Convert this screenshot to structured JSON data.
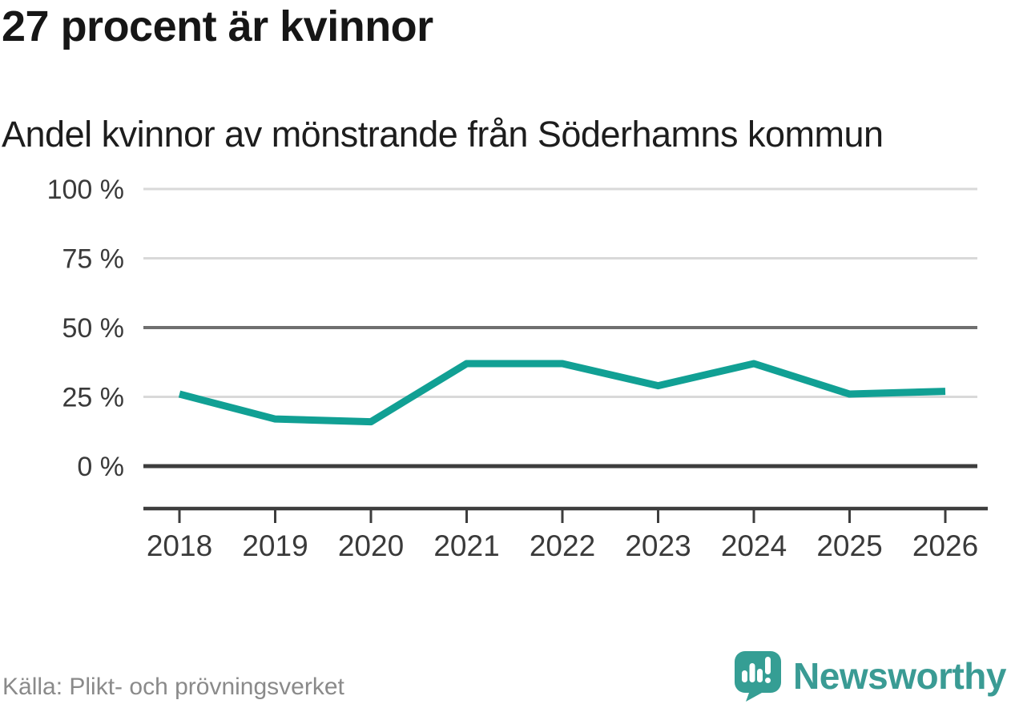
{
  "header": {
    "title": "27 procent är kvinnor",
    "subtitle": "Andel kvinnor av mönstrande från Söderhamns kommun"
  },
  "chart_data": {
    "type": "line",
    "title": "27 procent är kvinnor",
    "subtitle": "Andel kvinnor av mönstrande från Söderhamns kommun",
    "x": [
      2018,
      2019,
      2020,
      2021,
      2022,
      2023,
      2024,
      2025,
      2026
    ],
    "series": [
      {
        "name": "Andel kvinnor av mönstrande",
        "values": [
          26,
          17,
          16,
          37,
          37,
          29,
          37,
          26,
          27
        ]
      }
    ],
    "unit": "%",
    "xlabel": "",
    "ylabel": "",
    "ylim": [
      0,
      100
    ],
    "yticks": [
      {
        "value": 0,
        "label": "0 %",
        "emphasis": "dark"
      },
      {
        "value": 25,
        "label": "25 %",
        "emphasis": "light"
      },
      {
        "value": 50,
        "label": "50 %",
        "emphasis": "medium"
      },
      {
        "value": 75,
        "label": "75 %",
        "emphasis": "light"
      },
      {
        "value": 100,
        "label": "100 %",
        "emphasis": "light"
      }
    ],
    "grid": true,
    "legend": false,
    "line_color": "#11a094",
    "colors": {
      "grid": {
        "light": {
          "color": "#d9d9d9",
          "width": 3
        },
        "medium": {
          "color": "#6f6f6f",
          "width": 4
        },
        "dark": {
          "color": "#3d3d3d",
          "width": 5
        }
      },
      "axis": "#3d3d3d",
      "tick_label": "#3a3a3a"
    }
  },
  "footer": {
    "source": "Källa: Plikt- och prövningsverket",
    "brand": "Newsworthy",
    "brand_color": "#3a9b94",
    "logo_color": "#359e94",
    "logo_glyph_color": "#ffffff"
  }
}
